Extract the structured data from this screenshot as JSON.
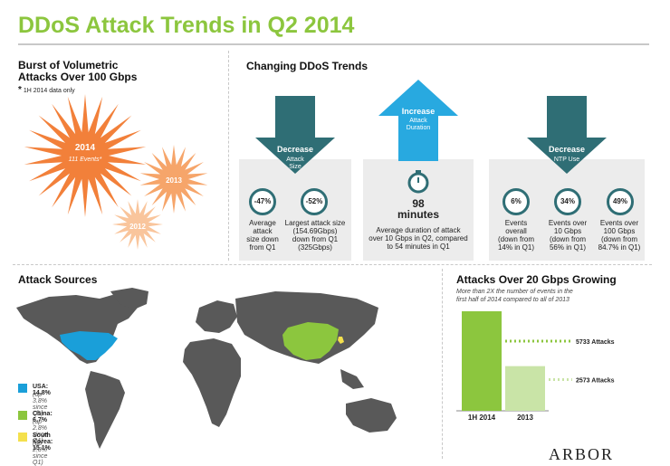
{
  "title": "DDoS Attack Trends in Q2 2014",
  "burst": {
    "heading_line1": "Burst of Volumetric",
    "heading_line2": "Attacks Over 100 Gbps",
    "footnote_mark": "*",
    "footnote": "1H 2014 data only",
    "colors": {
      "2014": "#f2803a",
      "2013": "#f6a56a",
      "2012": "#f9c59c"
    }
  },
  "trends": {
    "heading": "Changing DDoS Trends",
    "arrow_color": "#2f6e75",
    "up_arrow_color": "#28a9e0",
    "panel1": {
      "arrow_title": "Decrease",
      "arrow_sub1": "Attack",
      "arrow_sub2": "Size",
      "stats": [
        {
          "value": "-47%",
          "l1": "Average",
          "l2": "attack",
          "l3": "size down",
          "l4": "from Q1"
        },
        {
          "value": "-52%",
          "l1": "Largest attack size",
          "l2": "(154.69Gbps)",
          "l3": "down from Q1",
          "l4": "(325Gbps)"
        }
      ]
    },
    "panel2": {
      "arrow_title": "Increase",
      "arrow_sub1": "Attack",
      "arrow_sub2": "Duration",
      "value": "98",
      "unit": "minutes",
      "l1": "Average duration of attack",
      "l2": "over 10 Gbps in Q2, compared",
      "l3": "to 54 minutes in Q1"
    },
    "panel3": {
      "arrow_title": "Decrease",
      "arrow_sub1": "NTP Use",
      "stats": [
        {
          "value": "6%",
          "l1": "Events",
          "l2": "overall",
          "l3": "(down from",
          "l4": "14% in Q1)"
        },
        {
          "value": "34%",
          "l1": "Events over",
          "l2": "10 Gbps",
          "l3": "(down from",
          "l4": "56% in Q1)"
        },
        {
          "value": "49%",
          "l1": "Events over",
          "l2": "100 Gbps",
          "l3": "(down from",
          "l4": "84.7% in Q1)"
        }
      ]
    }
  },
  "sources": {
    "heading": "Attack Sources",
    "land_color": "#595959",
    "legend": [
      {
        "label": "USA: 14.8%",
        "note": "(up 3.8% since Q1)",
        "color": "#1a9fd9"
      },
      {
        "label": "China: 6.7%",
        "note": "(up 2.8% since Q1)",
        "color": "#8cc63e"
      },
      {
        "label": "South Korea: 15.1%",
        "note": "(up 2.8% since Q1)",
        "color": "#f4e04d"
      }
    ]
  },
  "growing": {
    "heading": "Attacks Over 20 Gbps Growing",
    "sub1": "More than 2X the number of events in the",
    "sub2": "first half of 2014 compared to all of 2013"
  },
  "chart_data": {
    "type": "bar",
    "title": "Attacks Over 20 Gbps Growing",
    "categories": [
      "1H 2014",
      "2013"
    ],
    "values": [
      5733,
      2573
    ],
    "data_labels": [
      "5733 Attacks",
      "2573 Attacks"
    ],
    "colors": [
      "#8cc63e",
      "#c9e4a7"
    ],
    "ylim": [
      0,
      5733
    ]
  },
  "logo": {
    "text": "ARBOR"
  }
}
